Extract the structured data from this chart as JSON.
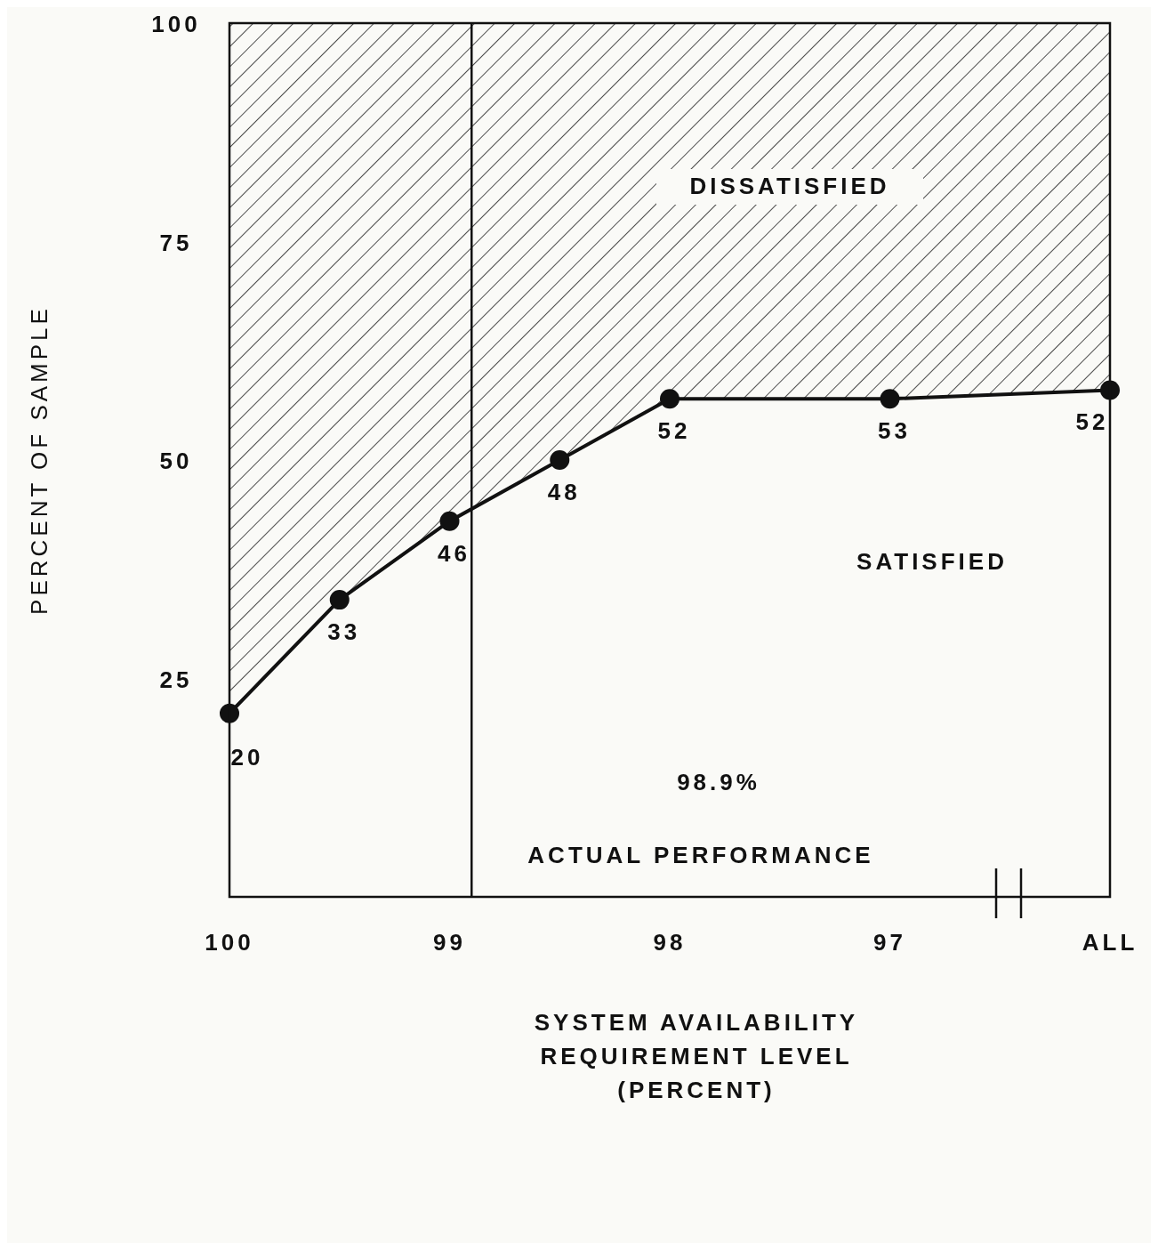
{
  "chart_data": {
    "type": "line",
    "xlabel": "SYSTEM AVAILABILITY REQUIREMENT LEVEL (PERCENT)",
    "ylabel": "PERCENT OF SAMPLE",
    "x": [
      100,
      99.5,
      99.0,
      98.5,
      98,
      97,
      96
    ],
    "series": [
      {
        "color": "#111111",
        "values": [
          21,
          34,
          43,
          50,
          57,
          57,
          58
        ],
        "lower": [
          21,
          34,
          43,
          50,
          57,
          57,
          58
        ],
        "upper": [
          100,
          100,
          100,
          100,
          100,
          100,
          100
        ]
      }
    ],
    "xlim": [
      100,
      96
    ],
    "xticks": [
      100,
      99,
      98,
      97,
      {
        "value": 96,
        "label": "ALL"
      }
    ],
    "ylim": [
      0,
      100
    ],
    "yticks": [
      25,
      50,
      75,
      100
    ],
    "ref_lines": [
      {
        "axis": "x",
        "value": 98.9,
        "label": "98.9%"
      }
    ],
    "annotations": [
      "DISSATISFIED",
      "SATISFIED",
      "ACTUAL PERFORMANCE",
      {
        "text": "20",
        "x": 100,
        "y": 21
      },
      {
        "text": "33",
        "x": 99.5,
        "y": 34
      },
      {
        "text": "46",
        "x": 99.0,
        "y": 43
      },
      {
        "text": "48",
        "x": 98.5,
        "y": 50
      },
      {
        "text": "52",
        "x": 98,
        "y": 57
      },
      {
        "text": "53",
        "x": 97,
        "y": 57
      },
      {
        "text": "52",
        "x": 96,
        "y": 58
      }
    ],
    "marker": "circle",
    "grid": false
  }
}
